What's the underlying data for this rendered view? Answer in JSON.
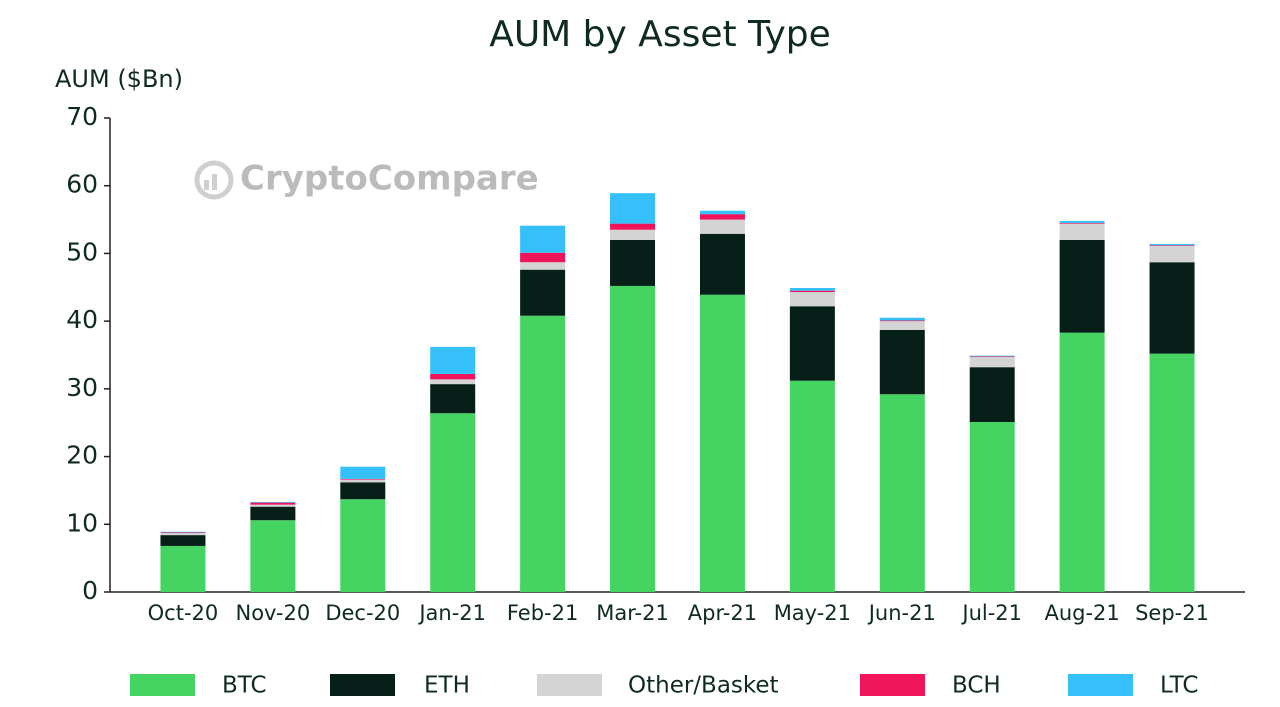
{
  "chart_data": {
    "type": "stacked_bar",
    "title": "AUM by Asset Type",
    "y_label": "AUM ($Bn)",
    "watermark": "CryptoCompare",
    "categories": [
      "Oct-20",
      "Nov-20",
      "Dec-20",
      "Jan-21",
      "Feb-21",
      "Mar-21",
      "Apr-21",
      "May-21",
      "Jun-21",
      "Jul-21",
      "Aug-21",
      "Sep-21"
    ],
    "series": [
      {
        "name": "BTC",
        "color": "#45d462",
        "values": [
          6.8,
          10.6,
          13.7,
          26.4,
          40.8,
          45.2,
          43.9,
          31.2,
          29.2,
          25.1,
          38.3,
          35.2
        ]
      },
      {
        "name": "ETH",
        "color": "#061f18",
        "values": [
          1.6,
          2.0,
          2.5,
          4.3,
          6.8,
          6.8,
          9.0,
          11.0,
          9.5,
          8.1,
          13.7,
          13.5
        ]
      },
      {
        "name": "Other/Basket",
        "color": "#d4d4d4",
        "values": [
          0.3,
          0.3,
          0.4,
          0.7,
          1.1,
          1.5,
          2.1,
          2.1,
          1.3,
          1.5,
          2.4,
          2.4
        ]
      },
      {
        "name": "BCH",
        "color": "#f0145a",
        "values": [
          0.1,
          0.3,
          0.1,
          0.8,
          1.4,
          0.9,
          0.8,
          0.2,
          0.1,
          0.1,
          0.1,
          0.1
        ]
      },
      {
        "name": "LTC",
        "color": "#35c0fb",
        "values": [
          0.1,
          0.1,
          1.8,
          4.0,
          4.0,
          4.5,
          0.5,
          0.4,
          0.4,
          0.1,
          0.3,
          0.2
        ]
      }
    ],
    "ylim": [
      0,
      70
    ],
    "yticks": [
      0,
      10,
      20,
      30,
      40,
      50,
      60,
      70
    ],
    "grid": false,
    "legend": "bottom"
  }
}
